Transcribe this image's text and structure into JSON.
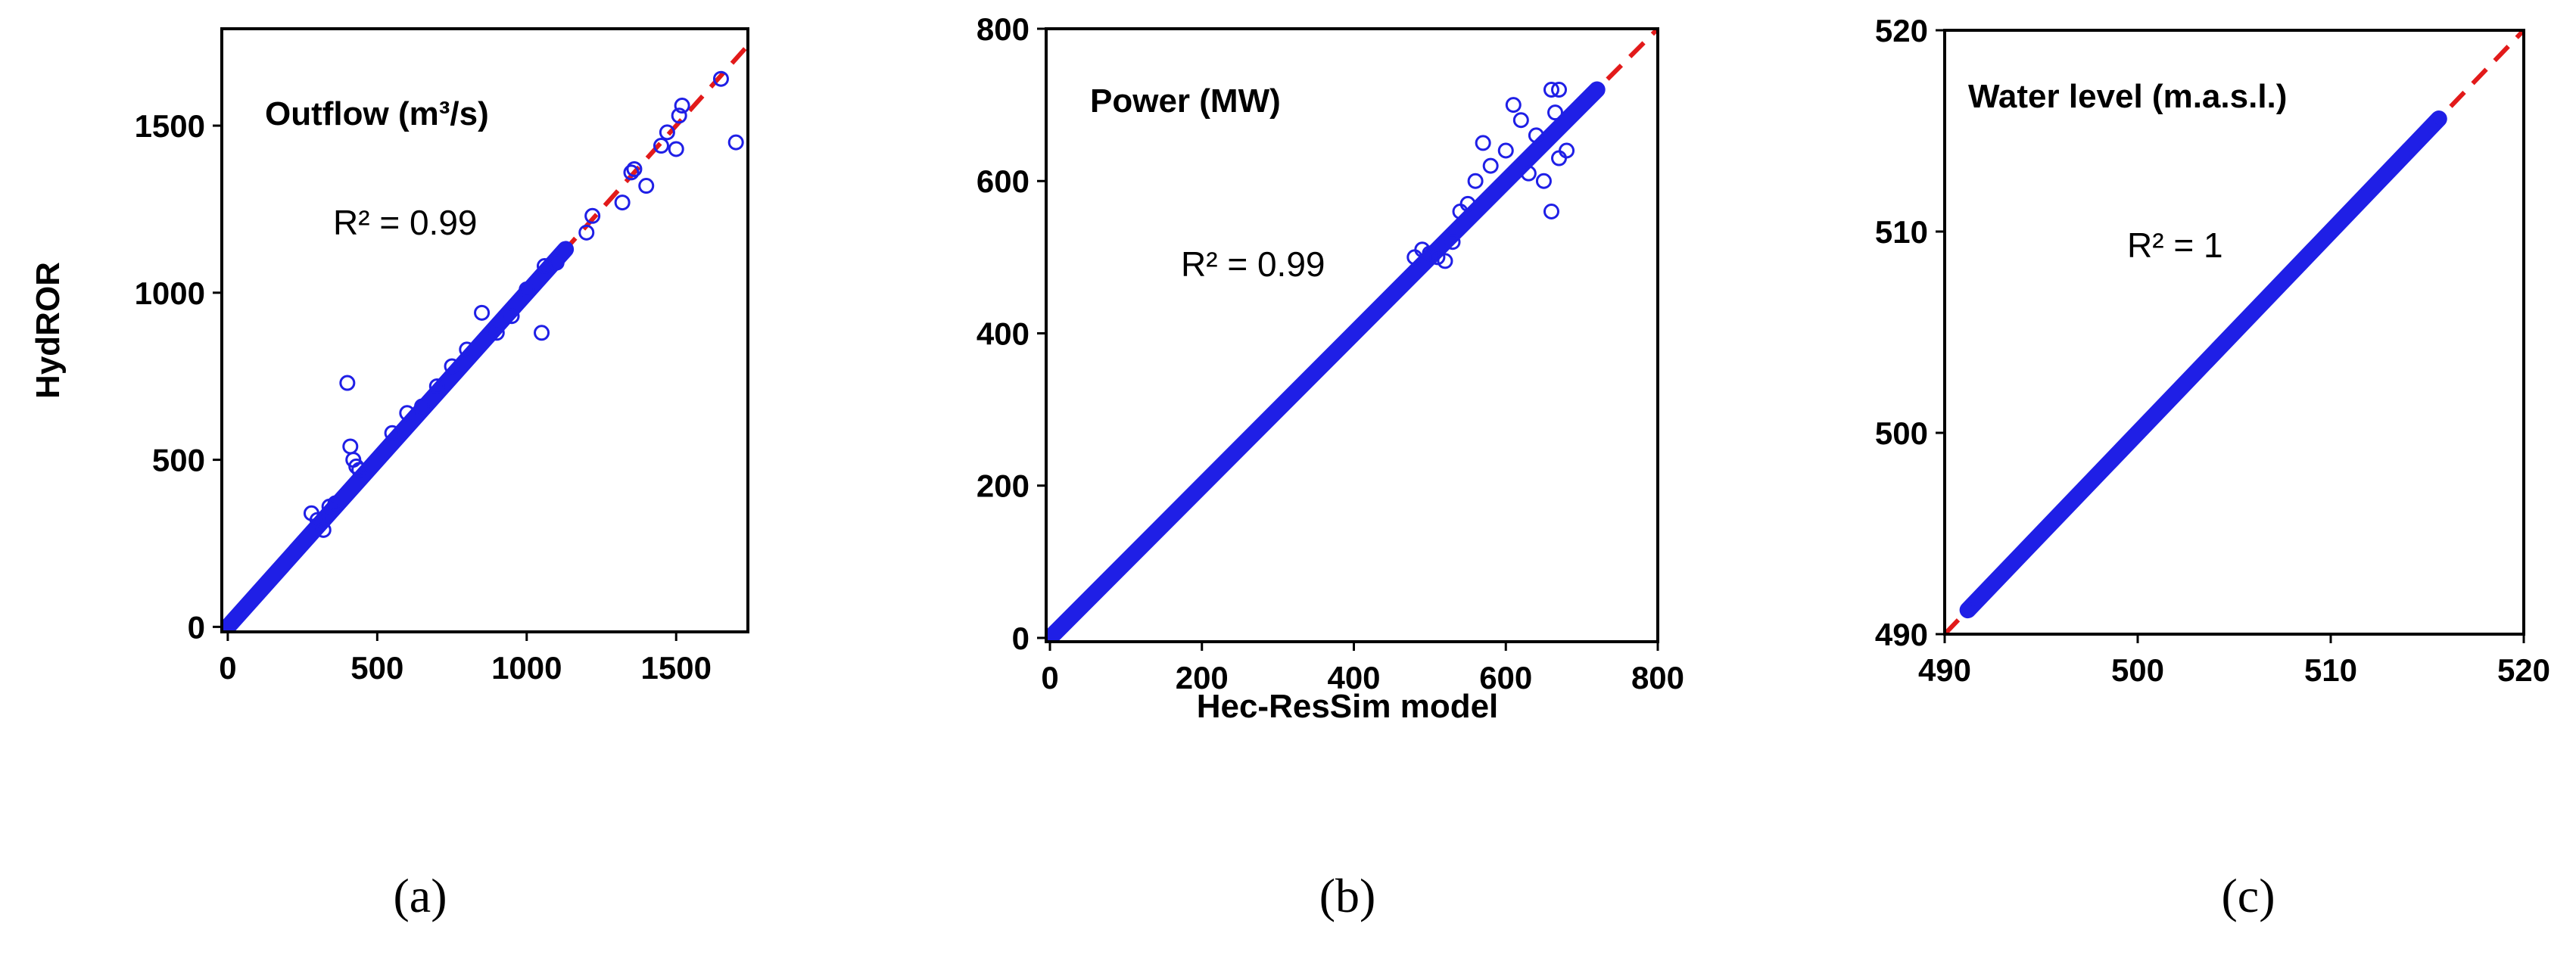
{
  "chart_data": [
    {
      "type": "scatter",
      "title": "Outflow (m³/s)",
      "annotation": "R² = 0.99",
      "ylabel": "HydROR",
      "xlabel": "",
      "panel_label": "(a)",
      "xlim": [
        -20,
        1740
      ],
      "ylim": [
        -15,
        1790
      ],
      "x_ticks": [
        0,
        500,
        1000,
        1500
      ],
      "y_ticks": [
        0,
        500,
        1000,
        1500
      ],
      "reference_line": "1:1",
      "series": [
        {
          "name": "dense",
          "from": [
            0,
            0
          ],
          "to": [
            1130,
            1130
          ]
        },
        {
          "name": "points",
          "x": [
            400,
            410,
            420,
            430,
            440,
            280,
            300,
            320,
            340,
            360,
            550,
            600,
            650,
            700,
            750,
            800,
            850,
            900,
            950,
            1000,
            1050,
            1060,
            1100,
            1200,
            1220,
            1320,
            1350,
            1360,
            1400,
            1450,
            1470,
            1500,
            1520,
            1510,
            1650,
            1700
          ],
          "y": [
            730,
            540,
            500,
            480,
            470,
            340,
            320,
            290,
            360,
            370,
            580,
            640,
            660,
            720,
            780,
            830,
            940,
            880,
            930,
            1010,
            880,
            1080,
            1090,
            1180,
            1230,
            1270,
            1360,
            1370,
            1320,
            1440,
            1480,
            1430,
            1560,
            1530,
            1640,
            1450
          ]
        }
      ]
    },
    {
      "type": "scatter",
      "title": "Power (MW)",
      "annotation": "R² = 0.99",
      "ylabel": "",
      "xlabel": "Hec-ResSim  model",
      "panel_label": "(b)",
      "xlim": [
        -5,
        800
      ],
      "ylim": [
        -5,
        800
      ],
      "x_ticks": [
        0,
        200,
        400,
        600,
        800
      ],
      "y_ticks": [
        0,
        200,
        400,
        600,
        800
      ],
      "reference_line": "1:1",
      "series": [
        {
          "name": "dense",
          "from": [
            0,
            0
          ],
          "to": [
            720,
            720
          ]
        },
        {
          "name": "points",
          "x": [
            480,
            490,
            500,
            510,
            520,
            530,
            540,
            550,
            560,
            570,
            580,
            600,
            610,
            620,
            630,
            640,
            650,
            660,
            670,
            680,
            660,
            670,
            665
          ],
          "y": [
            500,
            510,
            505,
            500,
            495,
            520,
            560,
            570,
            600,
            650,
            620,
            640,
            700,
            680,
            610,
            660,
            600,
            560,
            630,
            640,
            720,
            720,
            690
          ]
        }
      ]
    },
    {
      "type": "scatter",
      "title": "Water level (m.a.s.l.)",
      "annotation": "R² = 1",
      "ylabel": "",
      "xlabel": "",
      "panel_label": "(c)",
      "xlim": [
        490,
        520
      ],
      "ylim": [
        490,
        520
      ],
      "x_ticks": [
        490,
        500,
        510,
        520
      ],
      "y_ticks": [
        490,
        500,
        510,
        520
      ],
      "reference_line": "1:1",
      "series": [
        {
          "name": "dense",
          "from": [
            491.2,
            491.2
          ],
          "to": [
            515.6,
            515.6
          ]
        },
        {
          "name": "points",
          "x": [
            491.2,
            515.6
          ],
          "y": [
            491.2,
            515.6
          ]
        }
      ]
    }
  ],
  "colors": {
    "points": "#1f1fe6",
    "reference": "#e21a1a",
    "axes": "#000000"
  }
}
